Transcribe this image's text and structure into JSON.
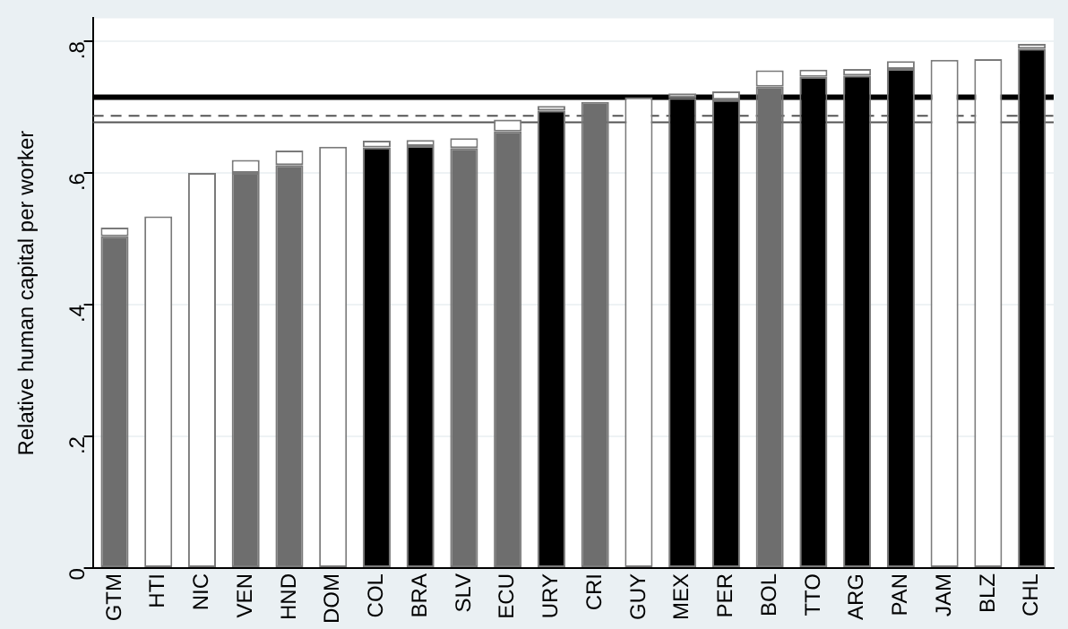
{
  "chart_data": {
    "type": "bar",
    "stacked": true,
    "ylabel": "Relative human capital per worker",
    "categories": [
      "GTM",
      "HTI",
      "NIC",
      "VEN",
      "HND",
      "DOM",
      "COL",
      "BRA",
      "SLV",
      "ECU",
      "URY",
      "CRI",
      "GUY",
      "MEX",
      "PER",
      "BOL",
      "TTO",
      "ARG",
      "PAN",
      "JAM",
      "BLZ",
      "CHL"
    ],
    "series": [
      {
        "colors": [
          "#6e6e6e",
          "#ffffff",
          "#ffffff",
          "#6e6e6e",
          "#6e6e6e",
          "#ffffff",
          "#000000",
          "#000000",
          "#6e6e6e",
          "#6e6e6e",
          "#000000",
          "#6e6e6e",
          "#ffffff",
          "#000000",
          "#000000",
          "#6e6e6e",
          "#000000",
          "#000000",
          "#000000",
          "#ffffff",
          "#ffffff",
          "#000000"
        ],
        "values": [
          0.504,
          0.534,
          0.6,
          0.6,
          0.612,
          0.64,
          0.639,
          0.641,
          0.638,
          0.663,
          0.695,
          0.708,
          0.715,
          0.714,
          0.711,
          0.731,
          0.746,
          0.748,
          0.758,
          0.772,
          0.773,
          0.789
        ]
      },
      {
        "color": "#ffffff",
        "values": [
          0.013,
          null,
          null,
          0.02,
          0.022,
          null,
          0.01,
          0.009,
          0.015,
          0.018,
          0.007,
          null,
          null,
          0.007,
          0.013,
          0.025,
          0.011,
          0.01,
          0.012,
          null,
          null,
          0.007
        ]
      }
    ],
    "ylim": [
      0,
      0.835
    ],
    "yticks": [
      0,
      {
        "value": 0.2,
        "label": ".2"
      },
      {
        "value": 0.4,
        "label": ".4"
      },
      {
        "value": 0.6,
        "label": ".6"
      },
      {
        "value": 0.8,
        "label": ".8"
      }
    ],
    "grid": "y",
    "legend": false,
    "ref_lines": [
      {
        "axis": "y",
        "value": 0.715,
        "color": "#000000",
        "line_style": "solid"
      },
      {
        "axis": "y",
        "value": 0.687,
        "color": "#555555",
        "line_style": "dashed"
      },
      {
        "axis": "y",
        "value": 0.677,
        "color": "#555555",
        "line_style": "solid"
      }
    ]
  }
}
